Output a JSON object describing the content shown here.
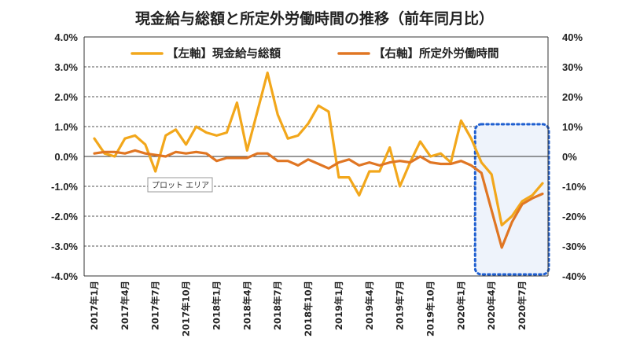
{
  "chart_data": {
    "type": "line",
    "title": "現金給与総額と所定外労働時間の推移（前年同月比）",
    "x": [
      "2017年1月",
      "2017年2月",
      "2017年3月",
      "2017年4月",
      "2017年5月",
      "2017年6月",
      "2017年7月",
      "2017年8月",
      "2017年9月",
      "2017年10月",
      "2017年11月",
      "2017年12月",
      "2018年1月",
      "2018年2月",
      "2018年3月",
      "2018年4月",
      "2018年5月",
      "2018年6月",
      "2018年7月",
      "2018年8月",
      "2018年9月",
      "2018年10月",
      "2018年11月",
      "2018年12月",
      "2019年1月",
      "2019年2月",
      "2019年3月",
      "2019年4月",
      "2019年5月",
      "2019年6月",
      "2019年7月",
      "2019年8月",
      "2019年9月",
      "2019年10月",
      "2019年11月",
      "2019年12月",
      "2020年1月",
      "2020年2月",
      "2020年3月",
      "2020年4月",
      "2020年5月",
      "2020年6月",
      "2020年7月",
      "2020年8月",
      "2020年9月"
    ],
    "x_tick_labels": [
      "2017年1月",
      "2017年4月",
      "2017年7月",
      "2017年10月",
      "2018年1月",
      "2018年4月",
      "2018年7月",
      "2018年10月",
      "2019年1月",
      "2019年4月",
      "2019年7月",
      "2019年10月",
      "2020年1月",
      "2020年4月",
      "2020年7月"
    ],
    "y_left": {
      "ticks": [
        "4.0%",
        "3.0%",
        "2.0%",
        "1.0%",
        "0.0%",
        "-1.0%",
        "-2.0%",
        "-3.0%",
        "-4.0%"
      ],
      "ylim": [
        -4,
        4
      ]
    },
    "y_right": {
      "ticks": [
        "40%",
        "30%",
        "20%",
        "10%",
        "0%",
        "-10%",
        "-20%",
        "-30%",
        "-40%"
      ],
      "ylim": [
        -40,
        40
      ]
    },
    "grid": true,
    "legend_position": "top",
    "series": [
      {
        "name": "【左軸】現金給与総額",
        "axis": "left",
        "color": "#F2A71B",
        "values": [
          0.6,
          0.1,
          0.0,
          0.6,
          0.7,
          0.4,
          -0.5,
          0.7,
          0.9,
          0.4,
          1.0,
          0.8,
          0.7,
          0.8,
          1.8,
          0.2,
          1.5,
          2.8,
          1.4,
          0.6,
          0.7,
          1.1,
          1.7,
          1.5,
          -0.7,
          -0.7,
          -1.3,
          -0.5,
          -0.5,
          0.3,
          -1.0,
          -0.2,
          0.5,
          0.0,
          0.1,
          -0.2,
          1.2,
          0.6,
          -0.2,
          -0.6,
          -2.3,
          -2.0,
          -1.5,
          -1.3,
          -0.9
        ]
      },
      {
        "name": "【右軸】所定外労働時間",
        "axis": "right",
        "color": "#E07623",
        "values": [
          1.0,
          1.5,
          1.5,
          1.0,
          2.0,
          1.0,
          0.5,
          0.0,
          1.5,
          1.0,
          1.5,
          1.0,
          -1.5,
          -0.5,
          -0.5,
          -0.5,
          1.0,
          1.0,
          -1.5,
          -1.5,
          -3.0,
          -1.0,
          -2.5,
          -4.0,
          -2.0,
          -1.0,
          -3.0,
          -2.0,
          -3.0,
          -2.0,
          -1.5,
          -2.0,
          0.0,
          -2.0,
          -2.5,
          -2.5,
          -1.5,
          -3.0,
          -5.5,
          -18.0,
          -30.5,
          -22.0,
          -16.0,
          -14.0,
          -12.5
        ]
      }
    ],
    "highlight": {
      "from": "2020年3月",
      "to": "2020年9月",
      "style": "dotted-blue-box"
    },
    "annotation": "プロット エリア"
  }
}
